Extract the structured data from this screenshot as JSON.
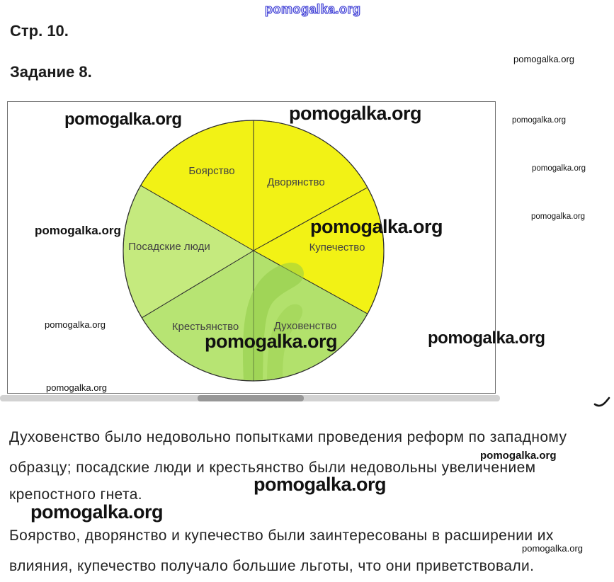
{
  "header": {
    "page_heading": "Стр. 10.",
    "task_heading": "Задание 8."
  },
  "watermark": {
    "text": "pomogalka.org",
    "brand_blue": "#3b3bd4"
  },
  "chart_data": {
    "type": "pie",
    "title": "",
    "legend_position": "none",
    "labels_inside": true,
    "segments": [
      {
        "id": "dvoryanstvo",
        "label": "Дворянство",
        "start_angle": 0,
        "end_angle": 61,
        "color": "#f2f215"
      },
      {
        "id": "kupechestvo",
        "label": "Купечество",
        "start_angle": 61,
        "end_angle": 119,
        "color": "#f2f215"
      },
      {
        "id": "dukhovenstvo",
        "label": "Духовенство",
        "start_angle": 119,
        "end_angle": 180,
        "color": "#b2e16c"
      },
      {
        "id": "krestyanstvo",
        "label": "Крестьянство",
        "start_angle": 180,
        "end_angle": 239,
        "color": "#b7e473"
      },
      {
        "id": "posadskie",
        "label": "Посадские люди",
        "start_angle": 239,
        "end_angle": 300,
        "color": "#c5ea7e"
      },
      {
        "id": "boyarstvo",
        "label": "Боярство",
        "start_angle": 300,
        "end_angle": 360,
        "color": "#f2f215"
      }
    ],
    "outline_color": "#2f2f2f"
  },
  "answer": {
    "paragraph1_lines": [
      "Духовенство было недовольно попытками проведения реформ по западному",
      "образцу; посадские люди и крестьянство были недовольны увеличением",
      "крепостного гнета."
    ],
    "paragraph2_lines": [
      "Боярство, дворянство и купечество были заинтересованы в расширении их",
      "влияния, купечество получало большие льготы, что они приветствовали."
    ]
  }
}
